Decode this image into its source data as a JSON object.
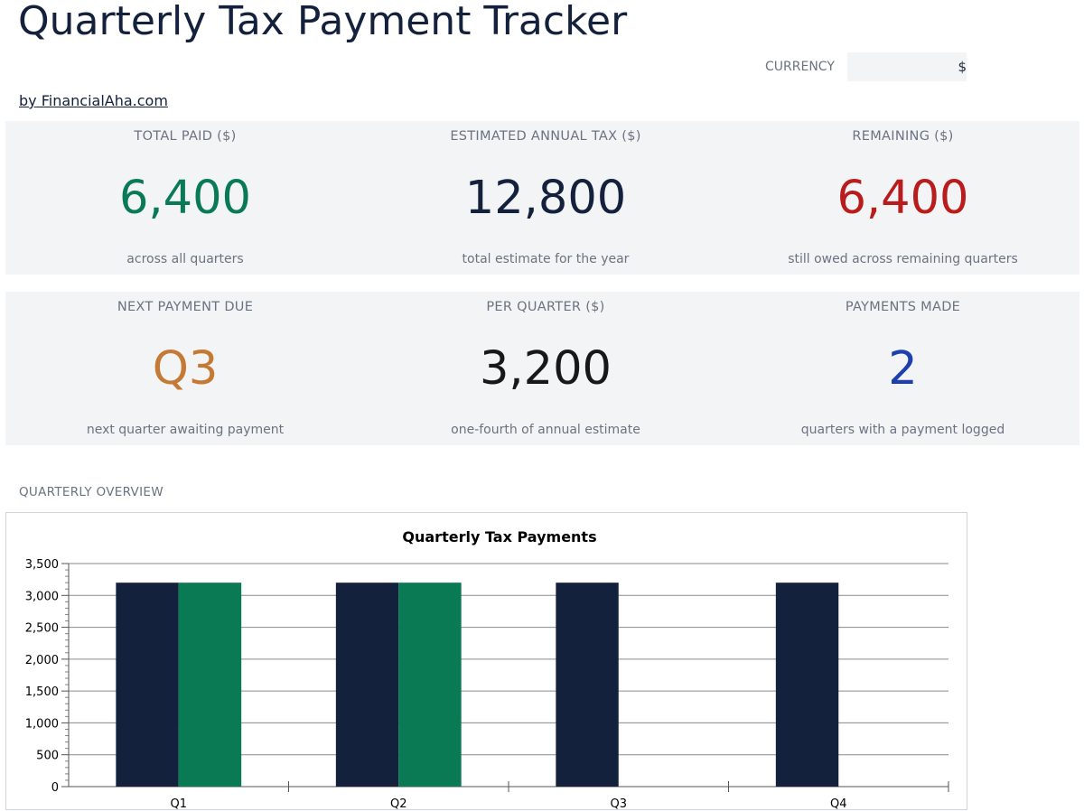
{
  "header": {
    "title": "Quarterly Tax Payment Tracker",
    "byline": "by FinancialAha.com"
  },
  "currency": {
    "label": "CURRENCY",
    "value": "$"
  },
  "kpis": {
    "total_paid": {
      "label": "TOTAL PAID ($)",
      "value": "6,400",
      "sub": "across all quarters",
      "color": "#0a7a55"
    },
    "estimated_annual": {
      "label": "ESTIMATED ANNUAL TAX ($)",
      "value": "12,800",
      "sub": "total estimate for the year",
      "color": "#14213d"
    },
    "remaining": {
      "label": "REMAINING ($)",
      "value": "6,400",
      "sub": "still owed across remaining quarters",
      "color": "#b91c1c"
    },
    "next_due": {
      "label": "NEXT PAYMENT DUE",
      "value": "Q3",
      "sub": "next quarter awaiting payment",
      "color": "#c47a35"
    },
    "per_quarter": {
      "label": "PER QUARTER ($)",
      "value": "3,200",
      "sub": "one-fourth of annual estimate",
      "color": "#18181b"
    },
    "payments_made": {
      "label": "PAYMENTS MADE",
      "value": "2",
      "sub": "quarters with a payment logged",
      "color": "#1e40af"
    }
  },
  "overview": {
    "section_title": "QUARTERLY OVERVIEW"
  },
  "chart_data": {
    "type": "bar",
    "title": "Quarterly Tax Payments",
    "categories": [
      "Q1",
      "Q2",
      "Q3",
      "Q4"
    ],
    "series": [
      {
        "values": [
          3200,
          3200,
          3200,
          3200
        ],
        "color": "#14213d"
      },
      {
        "values": [
          3200,
          3200,
          0,
          0
        ],
        "color": "#0a7a55"
      }
    ],
    "ylim": [
      0,
      3500
    ],
    "yticks": [
      0,
      500,
      1000,
      1500,
      2000,
      2500,
      3000,
      3500
    ],
    "ytick_labels": [
      "0",
      "500",
      "1,000",
      "1,500",
      "2,000",
      "2,500",
      "3,000",
      "3,500"
    ],
    "grid": true,
    "xlabel": "",
    "ylabel": ""
  }
}
